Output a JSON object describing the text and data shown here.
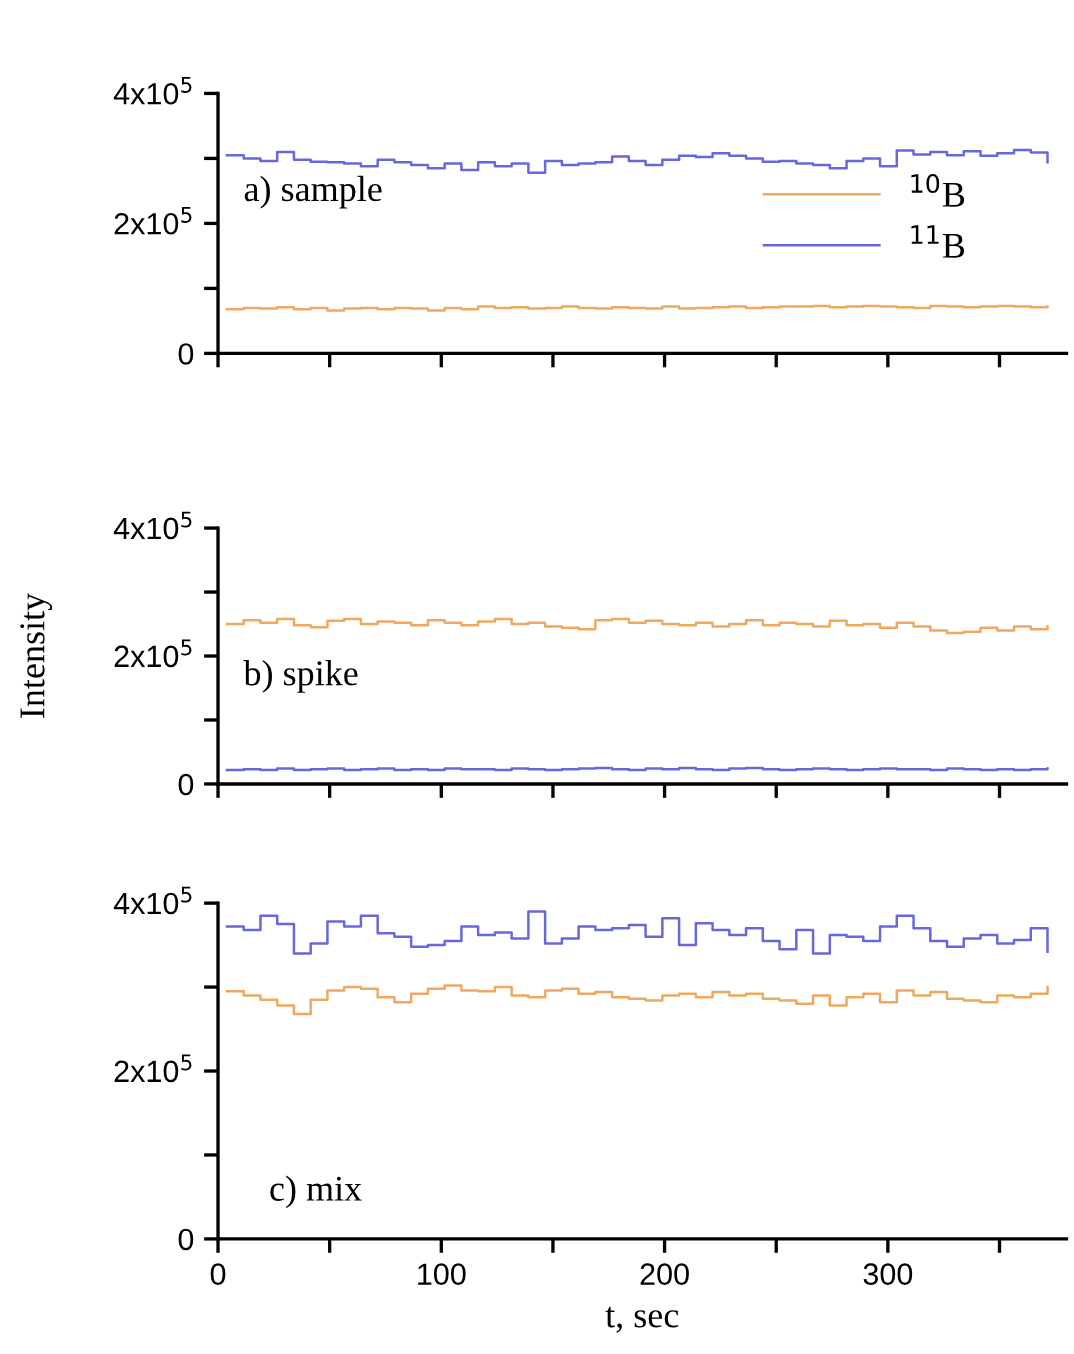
{
  "chart_data": [
    {
      "type": "step",
      "annotations": [
        "a) sample"
      ],
      "legend": "right",
      "tick_labels": "y",
      "x": [
        4,
        11.5,
        19,
        26.5,
        34,
        41.5,
        49,
        56.5,
        64,
        71.5,
        79,
        86.5,
        94,
        101.5,
        109,
        116.5,
        124,
        131.5,
        139,
        146.5,
        154,
        161.5,
        169,
        176.5,
        184,
        191.5,
        199,
        206.5,
        214,
        221.5,
        229,
        236.5,
        244,
        251.5,
        259,
        266.5,
        274,
        281.5,
        289,
        296.5,
        304,
        311.5,
        319,
        326.5,
        334,
        341.5,
        349,
        356.5,
        364,
        371.5
      ],
      "xlim": [
        0,
        380
      ],
      "xticks": [
        0,
        {
          "value": 50,
          "label": null
        },
        100,
        {
          "value": 150,
          "label": null
        },
        200,
        {
          "value": 250,
          "label": null
        },
        300,
        {
          "value": 350,
          "label": null
        }
      ],
      "ylim": [
        0,
        400000
      ],
      "yticks": [
        0,
        {
          "value": 100000,
          "label": null
        },
        {
          "value": 200000,
          "label": "2x10$^{5}$"
        },
        {
          "value": 300000,
          "label": null
        },
        {
          "value": 400000,
          "label": "4x10$^{5}$"
        }
      ],
      "series": [
        {
          "name": "$^{10}$B",
          "color": "#f0a860",
          "values": [
            68000,
            70000,
            69000,
            71000,
            68000,
            70000,
            66000,
            69000,
            70000,
            68000,
            70000,
            69000,
            66000,
            70000,
            68000,
            72000,
            70000,
            71000,
            69000,
            70000,
            72000,
            70000,
            69000,
            71000,
            70000,
            69000,
            72000,
            69000,
            70000,
            71000,
            72000,
            70000,
            71000,
            72000,
            72000,
            73000,
            71000,
            72000,
            73000,
            72000,
            71000,
            70000,
            73000,
            72000,
            71000,
            72000,
            73000,
            72000,
            71000,
            72000
          ]
        },
        {
          "name": "$^{11}$B",
          "color": "#6868dc",
          "values": [
            305000,
            300000,
            296000,
            310000,
            298000,
            295000,
            294000,
            292000,
            288000,
            298000,
            294000,
            290000,
            285000,
            292000,
            282000,
            294000,
            288000,
            292000,
            278000,
            296000,
            290000,
            292000,
            294000,
            303000,
            296000,
            290000,
            298000,
            304000,
            302000,
            308000,
            304000,
            300000,
            295000,
            296000,
            292000,
            290000,
            285000,
            296000,
            300000,
            288000,
            312000,
            306000,
            310000,
            305000,
            311000,
            304000,
            308000,
            313000,
            309000,
            294000
          ]
        }
      ]
    },
    {
      "type": "step",
      "annotations": [
        "b) spike"
      ],
      "ylabel": "Intensity",
      "tick_labels": "y",
      "x": [
        4,
        11.5,
        19,
        26.5,
        34,
        41.5,
        49,
        56.5,
        64,
        71.5,
        79,
        86.5,
        94,
        101.5,
        109,
        116.5,
        124,
        131.5,
        139,
        146.5,
        154,
        161.5,
        169,
        176.5,
        184,
        191.5,
        199,
        206.5,
        214,
        221.5,
        229,
        236.5,
        244,
        251.5,
        259,
        266.5,
        274,
        281.5,
        289,
        296.5,
        304,
        311.5,
        319,
        326.5,
        334,
        341.5,
        349,
        356.5,
        364,
        371.5
      ],
      "xlim": [
        0,
        380
      ],
      "xticks": [
        0,
        {
          "value": 50,
          "label": null
        },
        100,
        {
          "value": 150,
          "label": null
        },
        200,
        {
          "value": 250,
          "label": null
        },
        300,
        {
          "value": 350,
          "label": null
        }
      ],
      "ylim": [
        0,
        400000
      ],
      "yticks": [
        0,
        {
          "value": 100000,
          "label": null
        },
        {
          "value": 200000,
          "label": "2x10$^{5}$"
        },
        {
          "value": 300000,
          "label": null
        },
        {
          "value": 400000,
          "label": "4x10$^{5}$"
        }
      ],
      "series": [
        {
          "color": "#f0a860",
          "values": [
            250000,
            256000,
            252000,
            258000,
            248000,
            245000,
            255000,
            258000,
            250000,
            254000,
            252000,
            248000,
            256000,
            252000,
            248000,
            254000,
            258000,
            250000,
            252000,
            246000,
            244000,
            242000,
            256000,
            258000,
            252000,
            255000,
            250000,
            248000,
            252000,
            246000,
            250000,
            256000,
            248000,
            252000,
            250000,
            246000,
            255000,
            248000,
            250000,
            244000,
            252000,
            246000,
            240000,
            236000,
            238000,
            244000,
            240000,
            246000,
            242000,
            246000
          ]
        },
        {
          "color": "#6868dc",
          "values": [
            22000,
            23000,
            22000,
            24000,
            22000,
            23000,
            24000,
            22000,
            23000,
            24000,
            22000,
            23000,
            22000,
            24000,
            23000,
            23000,
            22000,
            24000,
            23000,
            22000,
            23000,
            24000,
            25000,
            23000,
            22000,
            24000,
            23000,
            25000,
            23000,
            22000,
            24000,
            25000,
            23000,
            22000,
            23000,
            24000,
            23000,
            22000,
            23000,
            24000,
            23000,
            23000,
            22000,
            24000,
            23000,
            22000,
            23000,
            22000,
            23000,
            24000
          ]
        }
      ]
    },
    {
      "type": "step",
      "annotations": [
        "c) mix"
      ],
      "xlabel": "t, sec",
      "x": [
        4,
        11.5,
        19,
        26.5,
        34,
        41.5,
        49,
        56.5,
        64,
        71.5,
        79,
        86.5,
        94,
        101.5,
        109,
        116.5,
        124,
        131.5,
        139,
        146.5,
        154,
        161.5,
        169,
        176.5,
        184,
        191.5,
        199,
        206.5,
        214,
        221.5,
        229,
        236.5,
        244,
        251.5,
        259,
        266.5,
        274,
        281.5,
        289,
        296.5,
        304,
        311.5,
        319,
        326.5,
        334,
        341.5,
        349,
        356.5,
        364,
        371.5
      ],
      "xlim": [
        0,
        380
      ],
      "xticks": [
        0,
        {
          "value": 50,
          "label": null
        },
        100,
        {
          "value": 150,
          "label": null
        },
        200,
        {
          "value": 250,
          "label": null
        },
        300,
        {
          "value": 350,
          "label": null
        }
      ],
      "ylim": [
        0,
        400000
      ],
      "yticks": [
        0,
        {
          "value": 100000,
          "label": null
        },
        {
          "value": 200000,
          "label": "2x10$^{5}$"
        },
        {
          "value": 300000,
          "label": null
        },
        {
          "value": 400000,
          "label": "4x10$^{5}$"
        }
      ],
      "series": [
        {
          "color": "#f0a860",
          "values": [
            295000,
            290000,
            285000,
            278000,
            268000,
            285000,
            296000,
            300000,
            298000,
            288000,
            282000,
            292000,
            298000,
            302000,
            296000,
            295000,
            300000,
            290000,
            288000,
            296000,
            298000,
            292000,
            294000,
            288000,
            286000,
            284000,
            290000,
            292000,
            288000,
            294000,
            290000,
            292000,
            286000,
            284000,
            280000,
            290000,
            278000,
            288000,
            292000,
            282000,
            296000,
            290000,
            294000,
            286000,
            284000,
            282000,
            290000,
            288000,
            292000,
            300000
          ]
        },
        {
          "color": "#6868dc",
          "values": [
            372000,
            368000,
            385000,
            375000,
            340000,
            352000,
            378000,
            372000,
            385000,
            364000,
            360000,
            348000,
            350000,
            355000,
            372000,
            362000,
            365000,
            358000,
            390000,
            352000,
            358000,
            372000,
            368000,
            370000,
            374000,
            360000,
            382000,
            350000,
            376000,
            368000,
            362000,
            370000,
            355000,
            345000,
            368000,
            340000,
            362000,
            360000,
            355000,
            372000,
            385000,
            370000,
            355000,
            348000,
            358000,
            362000,
            352000,
            356000,
            370000,
            342000
          ]
        }
      ]
    }
  ]
}
